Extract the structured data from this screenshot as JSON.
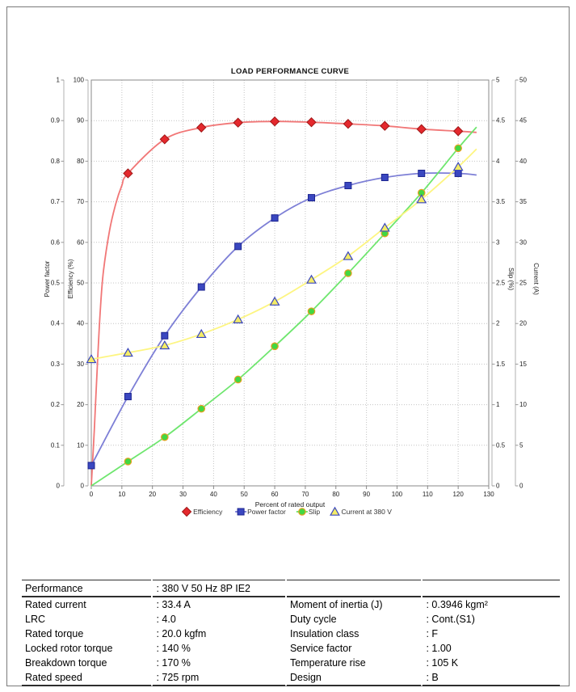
{
  "chart_data": {
    "type": "line",
    "title": "LOAD PERFORMANCE CURVE",
    "xlabel": "Percent of rated output",
    "x_axis": {
      "min": 0,
      "max": 130,
      "step": 10
    },
    "grid": "dotted",
    "legend_position": "bottom-center",
    "axes": [
      {
        "id": "power_factor",
        "title": "Power factor",
        "side": "left",
        "min": 0,
        "max": 1,
        "step": 0.1
      },
      {
        "id": "efficiency",
        "title": "Efficiency (%)",
        "side": "left",
        "min": 0,
        "max": 100,
        "step": 10
      },
      {
        "id": "slip",
        "title": "Slip (%)",
        "side": "right",
        "min": 0,
        "max": 5,
        "step": 0.5
      },
      {
        "id": "current",
        "title": "Current (A)",
        "side": "right",
        "min": 0,
        "max": 50,
        "step": 5
      }
    ],
    "series": [
      {
        "name": "Efficiency",
        "axis": "efficiency",
        "marker": "diamond",
        "line_color": "#f07070",
        "marker_fill": "#e4282d",
        "marker_stroke": "#a01616",
        "lead_points": [
          [
            0,
            0
          ],
          [
            1,
            14
          ],
          [
            2,
            30
          ],
          [
            3,
            44
          ],
          [
            4,
            53
          ],
          [
            6,
            63
          ],
          [
            8,
            69.5
          ],
          [
            10,
            74
          ]
        ],
        "points": [
          [
            12,
            77
          ],
          [
            24,
            85.4
          ],
          [
            36,
            88.3
          ],
          [
            48,
            89.5
          ],
          [
            60,
            89.8
          ],
          [
            72,
            89.6
          ],
          [
            84,
            89.2
          ],
          [
            96,
            88.7
          ],
          [
            108,
            87.9
          ],
          [
            120,
            87.4
          ]
        ],
        "tail_points": [
          [
            126,
            87.1
          ]
        ]
      },
      {
        "name": "Power factor",
        "axis": "power_factor",
        "marker": "square",
        "line_color": "#7678d4",
        "marker_fill": "#3a47c0",
        "marker_stroke": "#1c2490",
        "lead_points": [],
        "points": [
          [
            0,
            0.05
          ],
          [
            12,
            0.22
          ],
          [
            24,
            0.37
          ],
          [
            36,
            0.49
          ],
          [
            48,
            0.59
          ],
          [
            60,
            0.66
          ],
          [
            72,
            0.71
          ],
          [
            84,
            0.74
          ],
          [
            96,
            0.76
          ],
          [
            108,
            0.77
          ],
          [
            120,
            0.77
          ]
        ],
        "tail_points": [
          [
            126,
            0.766
          ]
        ]
      },
      {
        "name": "Slip",
        "axis": "slip",
        "marker": "circle",
        "line_color": "#66e566",
        "marker_fill": "#42d742",
        "marker_stroke": "#e8a020",
        "lead_points": [
          [
            0,
            0
          ]
        ],
        "points": [
          [
            12,
            0.3
          ],
          [
            24,
            0.6
          ],
          [
            36,
            0.95
          ],
          [
            48,
            1.31
          ],
          [
            60,
            1.72
          ],
          [
            72,
            2.15
          ],
          [
            84,
            2.62
          ],
          [
            96,
            3.11
          ],
          [
            108,
            3.61
          ],
          [
            120,
            4.16
          ]
        ],
        "tail_points": [
          [
            126,
            4.42
          ]
        ]
      },
      {
        "name": "Current at 380 V",
        "axis": "current",
        "marker": "triangle",
        "line_color": "#fdf47a",
        "marker_fill": "#f4ec66",
        "marker_stroke": "#3a47c0",
        "lead_points": [],
        "points": [
          [
            0,
            15.6
          ],
          [
            12,
            16.4
          ],
          [
            24,
            17.3
          ],
          [
            36,
            18.7
          ],
          [
            48,
            20.5
          ],
          [
            60,
            22.7
          ],
          [
            72,
            25.4
          ],
          [
            84,
            28.3
          ],
          [
            96,
            31.8
          ],
          [
            108,
            35.3
          ],
          [
            120,
            39.3
          ]
        ],
        "tail_points": [
          [
            126,
            41.5
          ]
        ]
      }
    ],
    "legend": [
      "Efficiency",
      "Power factor",
      "Slip",
      "Current at 380 V"
    ]
  },
  "table": {
    "performance": {
      "label": "Performance",
      "value": ": 380 V 50 Hz 8P IE2"
    },
    "left_rows": [
      {
        "label": "Rated current",
        "value": ": 33.4 A"
      },
      {
        "label": "LRC",
        "value": ": 4.0"
      },
      {
        "label": "Rated torque",
        "value": ": 20.0 kgfm"
      },
      {
        "label": "Locked rotor torque",
        "value": ": 140 %"
      },
      {
        "label": "Breakdown torque",
        "value": ": 170 %"
      },
      {
        "label": "Rated speed",
        "value": ": 725 rpm"
      }
    ],
    "right_rows": [
      {
        "label": "Moment of inertia (J)",
        "value": ": 0.3946 kgm²"
      },
      {
        "label": "Duty cycle",
        "value": ": Cont.(S1)"
      },
      {
        "label": "Insulation class",
        "value": ": F"
      },
      {
        "label": "Service factor",
        "value": ": 1.00"
      },
      {
        "label": "Temperature rise",
        "value": ": 105 K"
      },
      {
        "label": "Design",
        "value": ": B"
      }
    ]
  }
}
